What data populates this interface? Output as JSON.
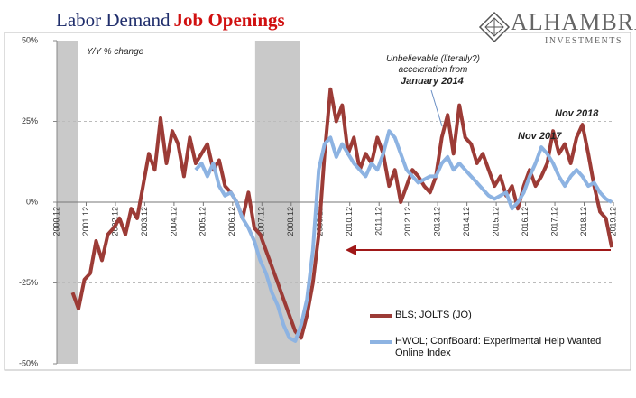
{
  "chart_data": {
    "type": "line",
    "title": "Labor Demand",
    "title_highlight": "Job Openings",
    "subtitle": "Y/Y % change",
    "brand": "ALHAMBRA",
    "brand_sub": "INVESTMENTS",
    "annotations": [
      "Unbelievable (literally?) acceleration from",
      "January 2014",
      "Nov 2017",
      "Nov 2018"
    ],
    "shaded_regions": [
      [
        2000.96,
        2001.67
      ],
      [
        2007.73,
        2009.27
      ]
    ],
    "x": [
      2001.5,
      2001.7,
      2001.9,
      2002.1,
      2002.3,
      2002.5,
      2002.7,
      2002.9,
      2003.1,
      2003.3,
      2003.5,
      2003.7,
      2003.9,
      2004.1,
      2004.3,
      2004.5,
      2004.7,
      2004.9,
      2005.1,
      2005.3,
      2005.5,
      2005.7,
      2005.9,
      2006.1,
      2006.3,
      2006.5,
      2006.7,
      2006.9,
      2007.1,
      2007.3,
      2007.5,
      2007.7,
      2007.9,
      2008.1,
      2008.3,
      2008.5,
      2008.7,
      2008.9,
      2009.1,
      2009.3,
      2009.5,
      2009.7,
      2009.9,
      2010.1,
      2010.3,
      2010.5,
      2010.7,
      2010.9,
      2011.1,
      2011.3,
      2011.5,
      2011.7,
      2011.9,
      2012.1,
      2012.3,
      2012.5,
      2012.7,
      2012.9,
      2013.1,
      2013.3,
      2013.5,
      2013.7,
      2013.9,
      2014.1,
      2014.3,
      2014.5,
      2014.7,
      2014.9,
      2015.1,
      2015.3,
      2015.5,
      2015.7,
      2015.9,
      2016.1,
      2016.3,
      2016.5,
      2016.7,
      2016.9,
      2017.1,
      2017.3,
      2017.5,
      2017.7,
      2017.9,
      2018.1,
      2018.3,
      2018.5,
      2018.7,
      2018.9,
      2019.1,
      2019.3,
      2019.5,
      2019.7,
      2019.9
    ],
    "series": [
      {
        "name": "BLS; JOLTS (JO)",
        "color": "#9c3b36",
        "values": [
          -28,
          -33,
          -24,
          -22,
          -12,
          -18,
          -10,
          -8,
          -5,
          -10,
          -2,
          -5,
          5,
          15,
          10,
          26,
          12,
          22,
          18,
          8,
          20,
          12,
          15,
          18,
          10,
          13,
          5,
          3,
          0,
          -5,
          3,
          -8,
          -10,
          -15,
          -20,
          -25,
          -30,
          -35,
          -40,
          -42,
          -35,
          -25,
          -10,
          15,
          35,
          25,
          30,
          15,
          20,
          10,
          15,
          12,
          20,
          15,
          5,
          10,
          0,
          5,
          10,
          8,
          5,
          3,
          8,
          20,
          27,
          15,
          30,
          20,
          18,
          12,
          15,
          10,
          5,
          8,
          2,
          5,
          -2,
          5,
          10,
          5,
          8,
          12,
          22,
          15,
          18,
          12,
          20,
          24,
          15,
          5,
          -3,
          -5,
          -14
        ]
      },
      {
        "name": "HWOL; ConfBoard: Experimental Help Wanted Online Index",
        "color": "#8db3e2",
        "values": [
          null,
          null,
          null,
          null,
          null,
          null,
          null,
          null,
          null,
          null,
          null,
          null,
          null,
          null,
          null,
          null,
          null,
          null,
          null,
          null,
          null,
          10,
          12,
          8,
          12,
          5,
          2,
          3,
          0,
          -5,
          -8,
          -12,
          -18,
          -22,
          -28,
          -32,
          -38,
          -42,
          -43,
          -38,
          -30,
          -15,
          10,
          18,
          20,
          14,
          18,
          15,
          12,
          10,
          8,
          12,
          10,
          15,
          22,
          20,
          15,
          10,
          8,
          6,
          7,
          8,
          8,
          12,
          14,
          10,
          12,
          10,
          8,
          6,
          4,
          2,
          1,
          2,
          3,
          -2,
          0,
          3,
          8,
          12,
          17,
          15,
          12,
          8,
          5,
          8,
          10,
          8,
          5,
          6,
          3,
          1,
          0
        ]
      }
    ],
    "xlim": [
      2000.96,
      2019.96
    ],
    "xticks": [
      {
        "value": 2000.96,
        "label": "2000.12"
      },
      {
        "value": 2001.96,
        "label": "2001.12"
      },
      {
        "value": 2002.96,
        "label": "2002.12"
      },
      {
        "value": 2003.96,
        "label": "2003.12"
      },
      {
        "value": 2004.96,
        "label": "2004.12"
      },
      {
        "value": 2005.96,
        "label": "2005.12"
      },
      {
        "value": 2006.96,
        "label": "2006.12"
      },
      {
        "value": 2007.96,
        "label": "2007.12"
      },
      {
        "value": 2008.96,
        "label": "2008.12"
      },
      {
        "value": 2009.96,
        "label": "2009.12"
      },
      {
        "value": 2010.96,
        "label": "2010.12"
      },
      {
        "value": 2011.96,
        "label": "2011.12"
      },
      {
        "value": 2012.96,
        "label": "2012.12"
      },
      {
        "value": 2013.96,
        "label": "2013.12"
      },
      {
        "value": 2014.96,
        "label": "2014.12"
      },
      {
        "value": 2015.96,
        "label": "2015.12"
      },
      {
        "value": 2016.96,
        "label": "2016.12"
      },
      {
        "value": 2017.96,
        "label": "2017.12"
      },
      {
        "value": 2018.96,
        "label": "2018.12"
      },
      {
        "value": 2019.96,
        "label": "2019.12"
      }
    ],
    "ylim": [
      -50,
      50
    ],
    "yticks": [
      {
        "value": 50,
        "label": "50%"
      },
      {
        "value": 25,
        "label": "25%"
      },
      {
        "value": 0,
        "label": "0%"
      },
      {
        "value": -25,
        "label": "-25%"
      },
      {
        "value": -50,
        "label": "-50%"
      }
    ],
    "grid": true
  }
}
